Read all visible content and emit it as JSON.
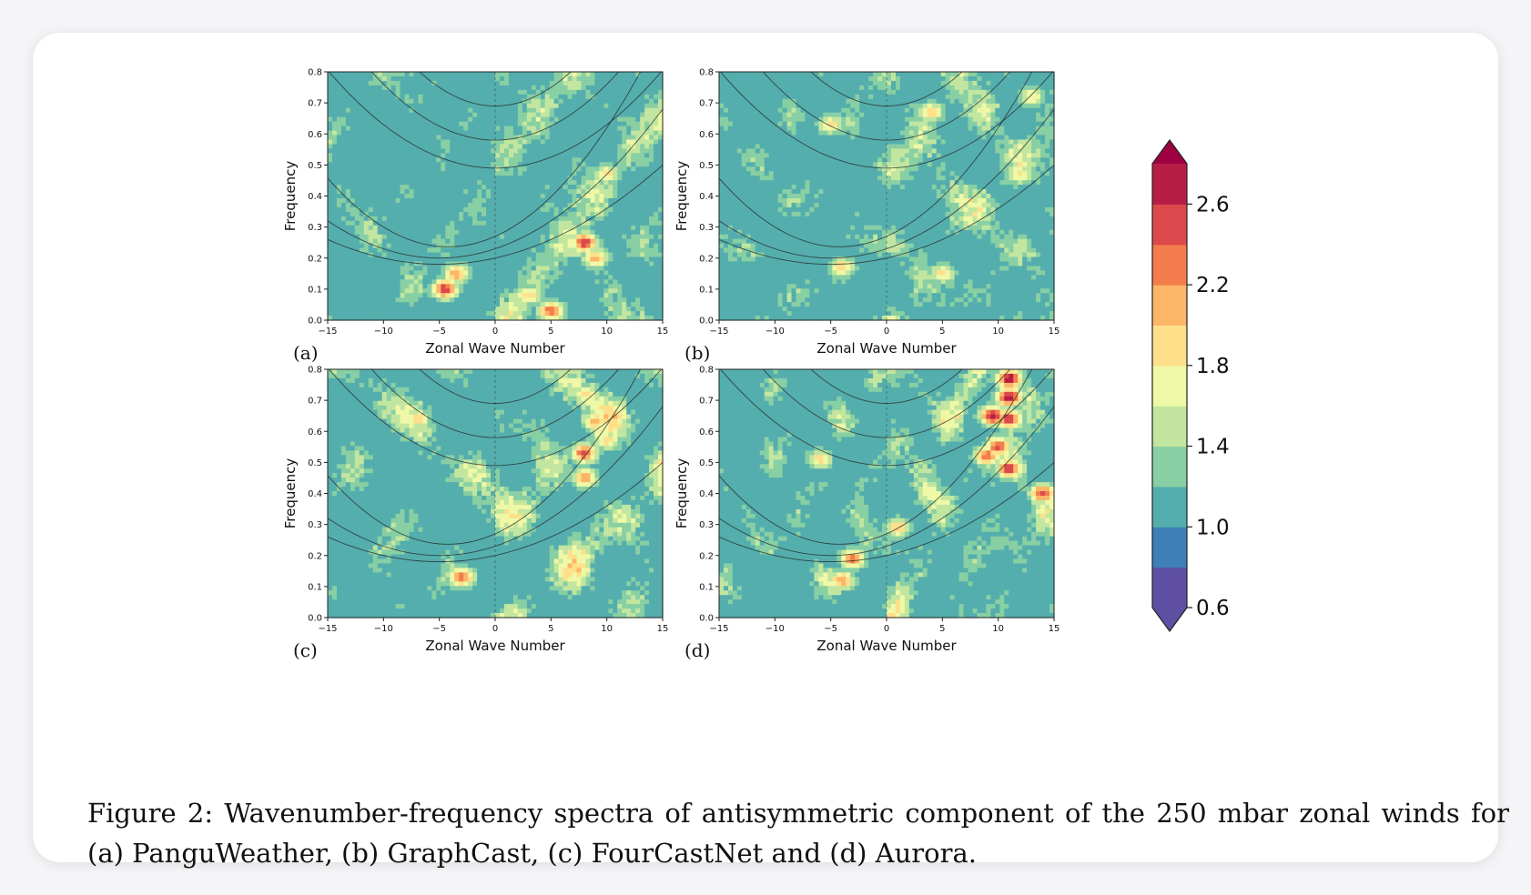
{
  "figure": {
    "caption_label": "Figure 2:",
    "caption_text": "Wavenumber-frequency spectra of antisymmetric component of the 250 mbar zonal winds for (a) PanguWeather, (b) GraphCast, (c) FourCastNet and (d) Aurora."
  },
  "chart_data": {
    "type": "heatmap",
    "panels": [
      {
        "label": "(a)",
        "xlabel": "Zonal Wave Number",
        "ylabel": "Frequency",
        "seed": 11,
        "hotspots": [
          [
            -4.5,
            0.1,
            2.6
          ],
          [
            -3.5,
            0.15,
            2.2
          ],
          [
            8,
            0.25,
            2.6
          ],
          [
            9,
            0.2,
            2.1
          ],
          [
            5,
            0.03,
            2.4
          ],
          [
            3,
            0.08,
            2.0
          ],
          [
            10,
            0.47,
            1.9
          ]
        ]
      },
      {
        "label": "(b)",
        "xlabel": "Zonal Wave Number",
        "ylabel": "Frequency",
        "seed": 23,
        "hotspots": [
          [
            4,
            0.67,
            2.0
          ],
          [
            -5,
            0.63,
            1.9
          ],
          [
            -4,
            0.17,
            2.0
          ],
          [
            5,
            0.15,
            1.9
          ],
          [
            12,
            0.47,
            1.9
          ],
          [
            13,
            0.72,
            1.8
          ]
        ]
      },
      {
        "label": "(c)",
        "xlabel": "Zonal Wave Number",
        "ylabel": "Frequency",
        "seed": 37,
        "hotspots": [
          [
            -3,
            0.13,
            2.4
          ],
          [
            -7,
            0.64,
            2.0
          ],
          [
            8,
            0.53,
            2.5
          ],
          [
            9,
            0.63,
            2.1
          ],
          [
            8,
            0.45,
            2.2
          ],
          [
            10,
            0.57,
            1.9
          ],
          [
            8,
            0.72,
            1.9
          ]
        ]
      },
      {
        "label": "(d)",
        "xlabel": "Zonal Wave Number",
        "ylabel": "Frequency",
        "seed": 51,
        "hotspots": [
          [
            11,
            0.77,
            2.8
          ],
          [
            11,
            0.71,
            2.8
          ],
          [
            9.5,
            0.65,
            2.7
          ],
          [
            11,
            0.64,
            2.6
          ],
          [
            10,
            0.55,
            2.5
          ],
          [
            11,
            0.48,
            2.6
          ],
          [
            9,
            0.52,
            2.4
          ],
          [
            14,
            0.4,
            2.5
          ],
          [
            -3,
            0.19,
            2.3
          ],
          [
            -4,
            0.12,
            2.2
          ],
          [
            1,
            0.29,
            2.0
          ],
          [
            -6,
            0.51,
            1.9
          ]
        ]
      }
    ],
    "x_range": [
      -15,
      15
    ],
    "y_range": [
      0.0,
      0.8
    ],
    "x_ticks": [
      -15,
      -10,
      -5,
      0,
      5,
      10,
      15
    ],
    "x_tick_labels": [
      "−15",
      "−10",
      "−5",
      "0",
      "5",
      "10",
      "15"
    ],
    "y_ticks": [
      0.0,
      0.1,
      0.2,
      0.3,
      0.4,
      0.5,
      0.6,
      0.7,
      0.8
    ],
    "y_tick_labels": [
      "0.0",
      "0.1",
      "0.2",
      "0.3",
      "0.4",
      "0.5",
      "0.6",
      "0.7",
      "0.8"
    ],
    "colorbar": {
      "levels": [
        0.6,
        0.8,
        1.0,
        1.2,
        1.4,
        1.6,
        1.8,
        2.0,
        2.2,
        2.4,
        2.6,
        2.8
      ],
      "colors": [
        "#5e4fa2",
        "#3f7fb8",
        "#54aead",
        "#88cfa4",
        "#c2e6a0",
        "#eff8a6",
        "#fee08b",
        "#fdb567",
        "#f47d4d",
        "#dc494c",
        "#b71c44",
        "#9e0142"
      ],
      "tick_values": [
        0.6,
        1.0,
        1.4,
        1.8,
        2.2,
        2.6
      ],
      "tick_labels": [
        "0.6",
        "1.0",
        "1.4",
        "1.8",
        "2.2",
        "2.6"
      ],
      "extend": "both"
    }
  }
}
